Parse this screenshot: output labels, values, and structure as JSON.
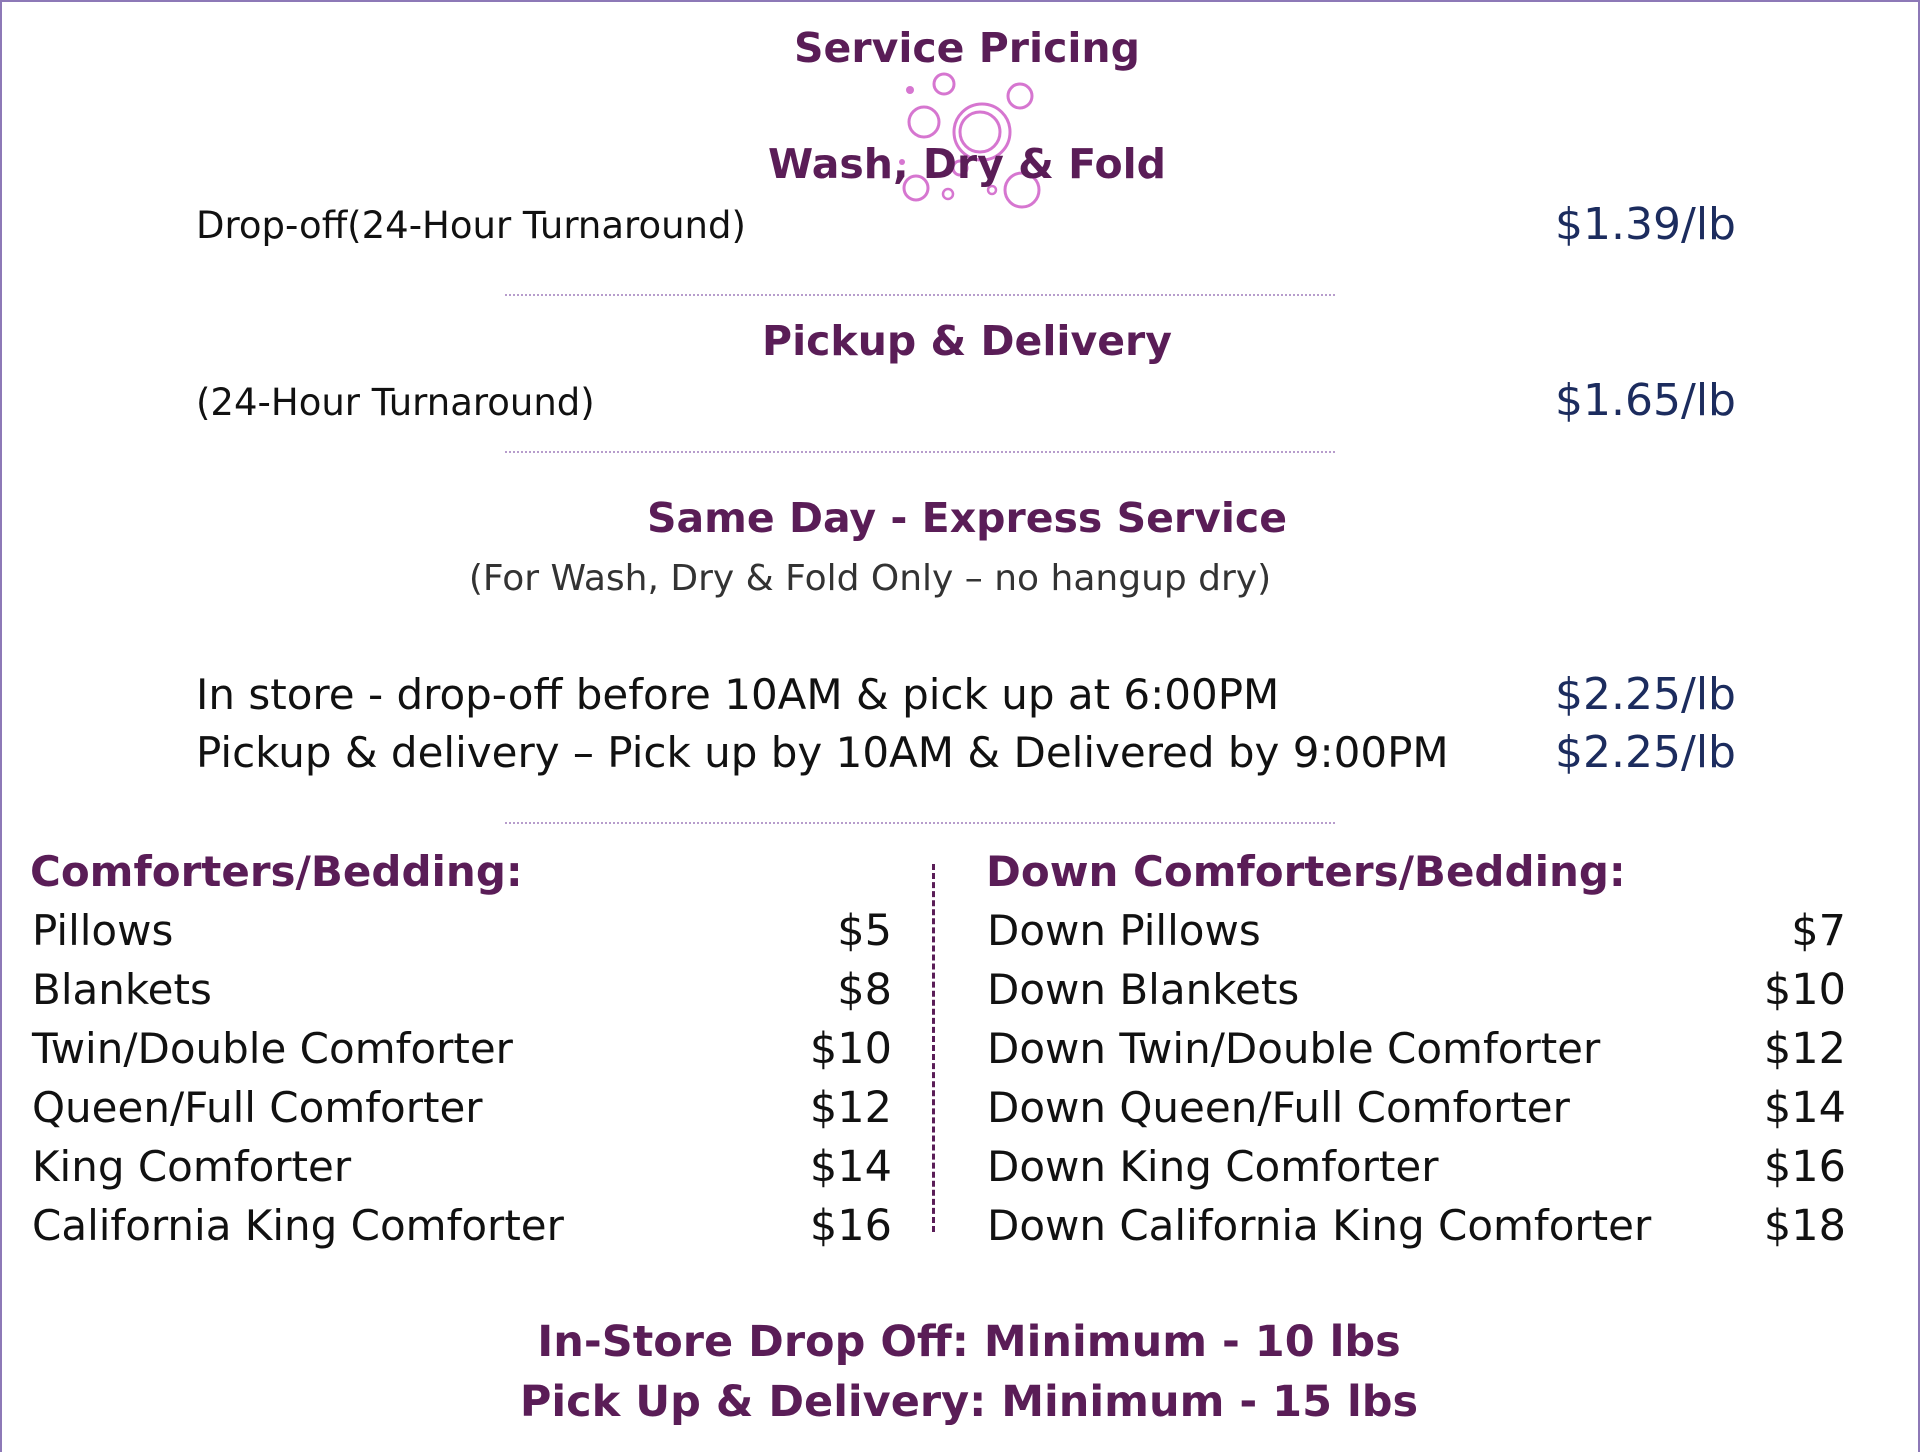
{
  "title": "Service Pricing",
  "wash_dry_fold": {
    "heading": "Wash, Dry & Fold",
    "desc": "Drop-off(24-Hour Turnaround)",
    "price": "$1.39/lb"
  },
  "pickup_delivery": {
    "heading": "Pickup & Delivery",
    "desc": "(24-Hour Turnaround)",
    "price": "$1.65/lb"
  },
  "same_day": {
    "heading": "Same Day - Express Service",
    "note": "(For Wash, Dry & Fold Only – no hangup dry)",
    "rows": [
      {
        "desc": "In store - drop-off before 10AM & pick up at 6:00PM",
        "price": "$2.25/lb"
      },
      {
        "desc": "Pickup & delivery – Pick up by 10AM & Delivered by 9:00PM",
        "price": "$2.25/lb"
      }
    ]
  },
  "comforters": {
    "heading": "Comforters/Bedding:",
    "items": [
      {
        "name": "Pillows",
        "price": "$5"
      },
      {
        "name": "Blankets",
        "price": "$8"
      },
      {
        "name": "Twin/Double Comforter",
        "price": "$10"
      },
      {
        "name": "Queen/Full Comforter",
        "price": "$12"
      },
      {
        "name": "King Comforter",
        "price": "$14"
      },
      {
        "name": "California King Comforter",
        "price": "$16"
      }
    ]
  },
  "down_comforters": {
    "heading": "Down Comforters/Bedding:",
    "items": [
      {
        "name": "Down Pillows",
        "price": "$7"
      },
      {
        "name": "Down Blankets",
        "price": "$10"
      },
      {
        "name": "Down Twin/Double Comforter",
        "price": "$12"
      },
      {
        "name": "Down Queen/Full Comforter",
        "price": "$14"
      },
      {
        "name": "Down King Comforter",
        "price": "$16"
      },
      {
        "name": "Down California King Comforter",
        "price": "$18"
      }
    ]
  },
  "minimums": {
    "in_store": "In-Store Drop Off: Minimum  - 10 lbs",
    "pickup": "Pick Up & Delivery: Minimum  - 15 lbs"
  },
  "colors": {
    "heading": "#5a1d57",
    "price": "#1c2c5e",
    "bubbles": "#d676d0",
    "border": "#8d79b7"
  },
  "icons": {
    "decoration": "soap-bubbles-icon"
  }
}
